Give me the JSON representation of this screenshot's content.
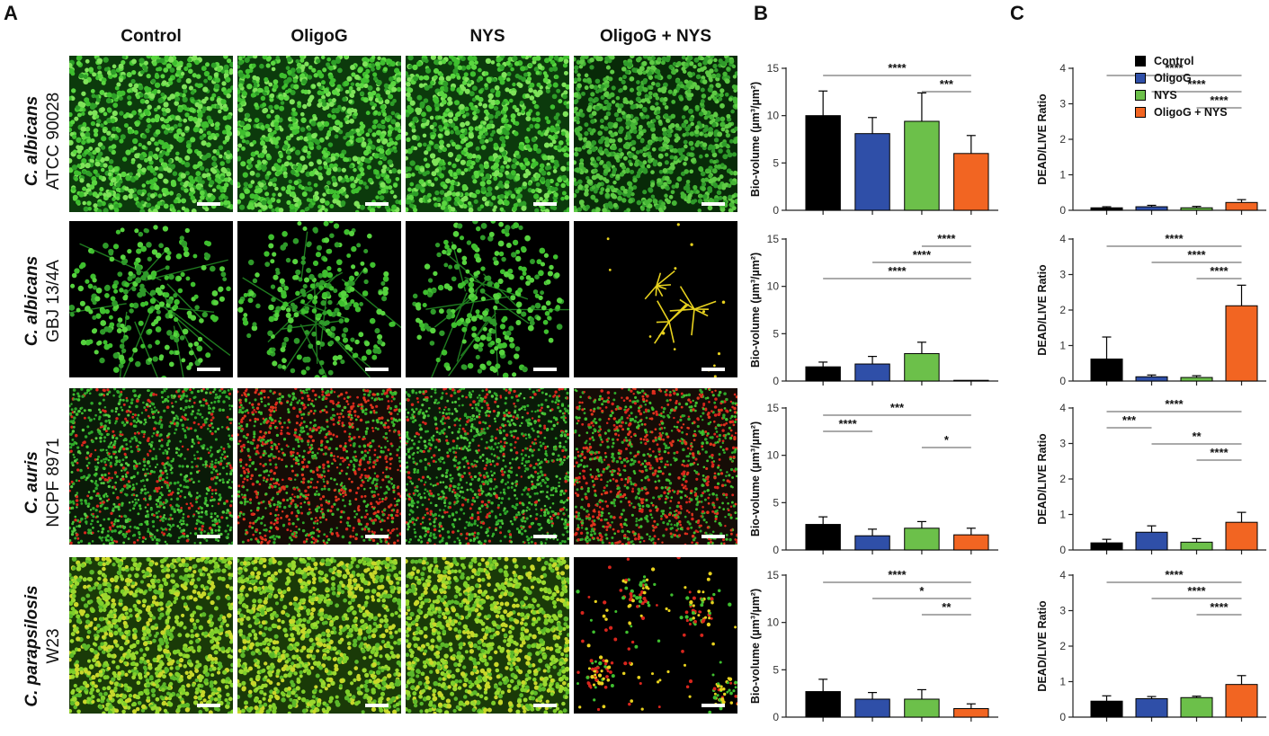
{
  "panels": {
    "a": "A",
    "b": "B",
    "c": "C"
  },
  "columns": [
    "Control",
    "OligoG",
    "NYS",
    "OligoG + NYS"
  ],
  "rows": [
    {
      "species": "C. albicans",
      "strain": "ATCC 90028"
    },
    {
      "species": "C. albicans",
      "strain": "GBJ 13/4A"
    },
    {
      "species": "C. auris",
      "strain": "NCPF 8971"
    },
    {
      "species": "C. parapsilosis",
      "strain": "W23"
    }
  ],
  "colors": {
    "Control": "#000000",
    "OligoG": "#2f4fa8",
    "NYS": "#6cc04a",
    "OligoG + NYS": "#f26522",
    "live_stain": "#4ed13a",
    "dead_stain": "#e0261d",
    "hyphae": "#e8d21e"
  },
  "micrographs": [
    [
      "dense-green",
      "dense-green",
      "dense-green",
      "dense-green-dim"
    ],
    [
      "green-hyphal-network",
      "green-hyphal-network",
      "green-hyphal-network",
      "sparse-yellow-hyphae"
    ],
    [
      "green-red-speckle",
      "green-red-speckle-more-red",
      "green-red-speckle",
      "green-red-speckle-more-red"
    ],
    [
      "dense-yellow-green",
      "dense-yellow-green",
      "dense-yellow-green",
      "sparse-red-green-clusters"
    ]
  ],
  "legend": [
    "Control",
    "OligoG",
    "NYS",
    "OligoG + NYS"
  ],
  "chart_data": [
    {
      "panel": "B",
      "row": 1,
      "type": "bar",
      "ylabel": "Bio-volume (µm³/µm²)",
      "ylim": [
        0,
        15
      ],
      "yticks": [
        0,
        5,
        10,
        15
      ],
      "categories": [
        "Control",
        "OligoG",
        "NYS",
        "OligoG + NYS"
      ],
      "values": [
        10.0,
        8.1,
        9.4,
        6.0
      ],
      "errors": [
        2.6,
        1.7,
        3.0,
        1.9
      ],
      "significance": [
        {
          "from": 0,
          "to": 3,
          "label": "****"
        },
        {
          "from": 2,
          "to": 3,
          "label": "***"
        }
      ]
    },
    {
      "panel": "B",
      "row": 2,
      "type": "bar",
      "ylabel": "Bio-volume (µm³/µm²)",
      "ylim": [
        0,
        15
      ],
      "yticks": [
        0,
        5,
        10,
        15
      ],
      "categories": [
        "Control",
        "OligoG",
        "NYS",
        "OligoG + NYS"
      ],
      "values": [
        1.5,
        1.8,
        2.9,
        0.05
      ],
      "errors": [
        0.5,
        0.8,
        1.2,
        0.0
      ],
      "significance": [
        {
          "from": 2,
          "to": 3,
          "label": "****"
        },
        {
          "from": 1,
          "to": 3,
          "label": "****"
        },
        {
          "from": 0,
          "to": 3,
          "label": "****"
        }
      ]
    },
    {
      "panel": "B",
      "row": 3,
      "type": "bar",
      "ylabel": "Bio-volume (µm³/µm²)",
      "ylim": [
        0,
        15
      ],
      "yticks": [
        0,
        5,
        10,
        15
      ],
      "categories": [
        "Control",
        "OligoG",
        "NYS",
        "OligoG + NYS"
      ],
      "values": [
        2.7,
        1.5,
        2.3,
        1.6
      ],
      "errors": [
        0.8,
        0.7,
        0.7,
        0.7
      ],
      "significance": [
        {
          "from": 0,
          "to": 3,
          "label": "***"
        },
        {
          "from": 0,
          "to": 1,
          "label": "****"
        },
        {
          "from": 2,
          "to": 3,
          "label": "*"
        }
      ]
    },
    {
      "panel": "B",
      "row": 4,
      "type": "bar",
      "ylabel": "Bio-volume (µm³/µm²)",
      "ylim": [
        0,
        15
      ],
      "yticks": [
        0,
        5,
        10,
        15
      ],
      "categories": [
        "Control",
        "OligoG",
        "NYS",
        "OligoG + NYS"
      ],
      "values": [
        2.7,
        1.9,
        1.9,
        0.9
      ],
      "errors": [
        1.3,
        0.7,
        1.0,
        0.5
      ],
      "significance": [
        {
          "from": 0,
          "to": 3,
          "label": "****"
        },
        {
          "from": 1,
          "to": 3,
          "label": "*"
        },
        {
          "from": 2,
          "to": 3,
          "label": "**"
        }
      ]
    },
    {
      "panel": "C",
      "row": 1,
      "type": "bar",
      "ylabel": "DEAD/LIVE Ratio",
      "ylim": [
        0,
        4
      ],
      "yticks": [
        0,
        1,
        2,
        3,
        4
      ],
      "categories": [
        "Control",
        "OligoG",
        "NYS",
        "OligoG + NYS"
      ],
      "values": [
        0.07,
        0.1,
        0.07,
        0.22
      ],
      "errors": [
        0.03,
        0.04,
        0.04,
        0.08
      ],
      "significance": [
        {
          "from": 0,
          "to": 3,
          "label": "****"
        },
        {
          "from": 1,
          "to": 3,
          "label": "****"
        },
        {
          "from": 2,
          "to": 3,
          "label": "****"
        }
      ]
    },
    {
      "panel": "C",
      "row": 2,
      "type": "bar",
      "ylabel": "DEAD/LIVE Ratio",
      "ylim": [
        0,
        4
      ],
      "yticks": [
        0,
        1,
        2,
        3,
        4
      ],
      "categories": [
        "Control",
        "OligoG",
        "NYS",
        "OligoG + NYS"
      ],
      "values": [
        0.62,
        0.12,
        0.1,
        2.12
      ],
      "errors": [
        0.62,
        0.05,
        0.05,
        0.58
      ],
      "significance": [
        {
          "from": 0,
          "to": 3,
          "label": "****"
        },
        {
          "from": 1,
          "to": 3,
          "label": "****"
        },
        {
          "from": 2,
          "to": 3,
          "label": "****"
        }
      ]
    },
    {
      "panel": "C",
      "row": 3,
      "type": "bar",
      "ylabel": "DEAD/LIVE Ratio",
      "ylim": [
        0,
        4
      ],
      "yticks": [
        0,
        1,
        2,
        3,
        4
      ],
      "categories": [
        "Control",
        "OligoG",
        "NYS",
        "OligoG + NYS"
      ],
      "values": [
        0.2,
        0.5,
        0.22,
        0.78
      ],
      "errors": [
        0.1,
        0.18,
        0.1,
        0.28
      ],
      "significance": [
        {
          "from": 0,
          "to": 3,
          "label": "****"
        },
        {
          "from": 0,
          "to": 1,
          "label": "***"
        },
        {
          "from": 1,
          "to": 3,
          "label": "**"
        },
        {
          "from": 2,
          "to": 3,
          "label": "****"
        }
      ]
    },
    {
      "panel": "C",
      "row": 4,
      "type": "bar",
      "ylabel": "DEAD/LIVE Ratio",
      "ylim": [
        0,
        4
      ],
      "yticks": [
        0,
        1,
        2,
        3,
        4
      ],
      "categories": [
        "Control",
        "OligoG",
        "NYS",
        "OligoG + NYS"
      ],
      "values": [
        0.45,
        0.52,
        0.55,
        0.92
      ],
      "errors": [
        0.15,
        0.06,
        0.04,
        0.25
      ],
      "significance": [
        {
          "from": 0,
          "to": 3,
          "label": "****"
        },
        {
          "from": 1,
          "to": 3,
          "label": "****"
        },
        {
          "from": 2,
          "to": 3,
          "label": "****"
        }
      ]
    }
  ]
}
